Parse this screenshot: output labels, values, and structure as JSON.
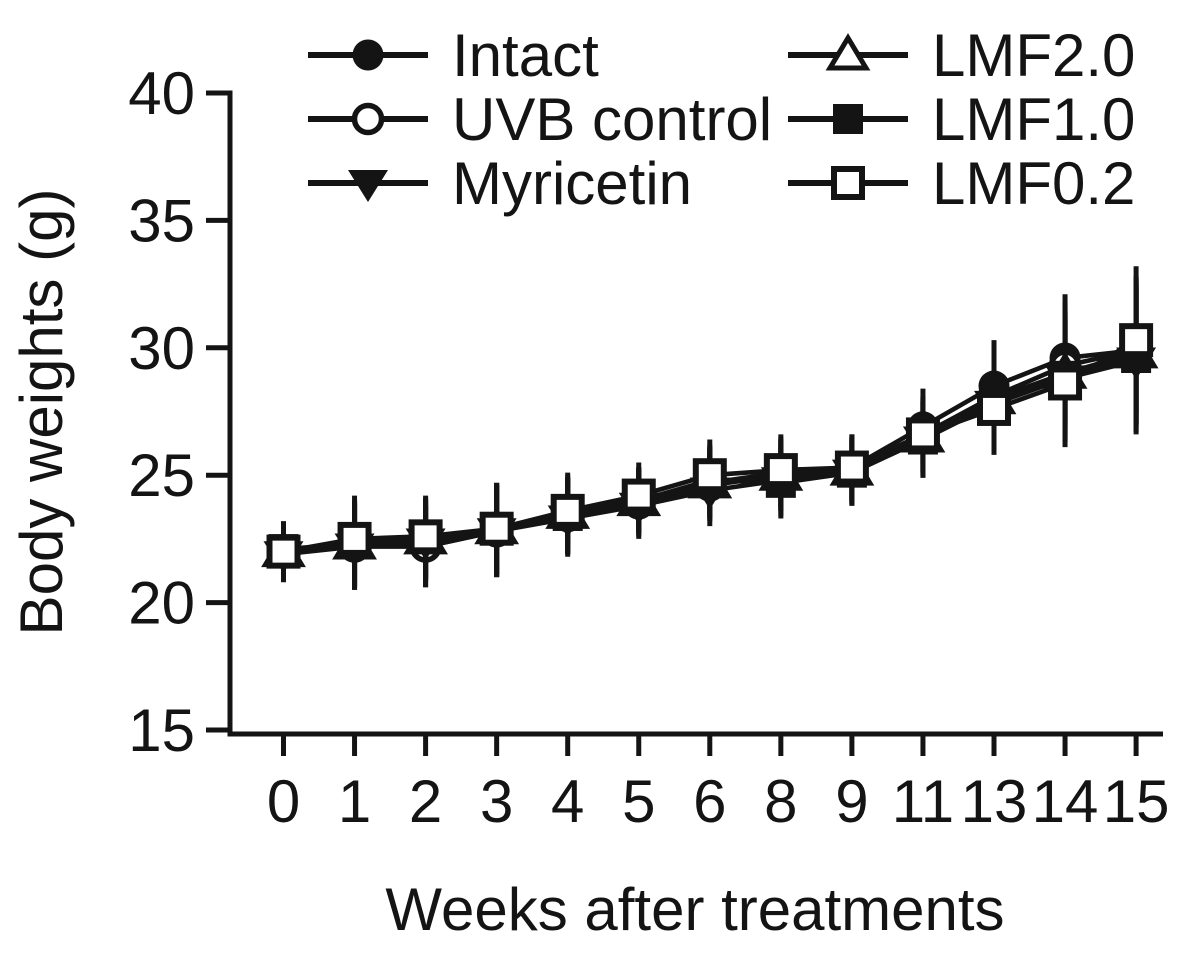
{
  "figure": {
    "background_color": "#ffffff",
    "ink_color": "#141414"
  },
  "chart_data": {
    "type": "line",
    "title": "",
    "xlabel": "Weeks after treatments",
    "ylabel": "Body weights (g)",
    "x_tick_labels": [
      "0",
      "1",
      "2",
      "3",
      "4",
      "5",
      "6",
      "8",
      "9",
      "11",
      "13",
      "14",
      "15"
    ],
    "y_ticks": [
      15,
      20,
      25,
      30,
      35,
      40
    ],
    "ylim": [
      15,
      40
    ],
    "grid": false,
    "legend": {
      "position": "top",
      "columns": 2,
      "entries": [
        "Intact",
        "UVB control",
        "Myricetin",
        "LMF2.0",
        "LMF1.0",
        "LMF0.2"
      ]
    },
    "error_bars": {
      "show": true,
      "caps": false,
      "half_lengths": [
        1.1,
        1.7,
        1.6,
        1.8,
        1.5,
        1.3,
        1.4,
        1.4,
        1.3,
        1.5,
        1.8,
        2.5,
        2.9
      ]
    },
    "series": [
      {
        "name": "Intact",
        "marker": "filled-circle",
        "values": [
          22.0,
          22.3,
          22.2,
          22.8,
          23.4,
          24.0,
          24.7,
          25.1,
          25.3,
          26.9,
          28.5,
          29.6,
          29.9
        ]
      },
      {
        "name": "UVB control",
        "marker": "open-circle",
        "values": [
          22.0,
          22.2,
          22.2,
          22.8,
          23.4,
          23.9,
          24.6,
          25.0,
          25.2,
          26.6,
          28.1,
          29.3,
          29.9
        ]
      },
      {
        "name": "Myricetin",
        "marker": "filled-triangle-down",
        "values": [
          21.9,
          22.2,
          22.4,
          22.8,
          23.3,
          23.8,
          24.4,
          24.8,
          25.1,
          26.4,
          27.8,
          28.8,
          29.5
        ]
      },
      {
        "name": "LMF2.0",
        "marker": "open-triangle-up",
        "values": [
          22.0,
          22.3,
          22.5,
          22.9,
          23.5,
          24.0,
          24.7,
          25.0,
          25.2,
          26.5,
          28.0,
          29.0,
          29.8
        ]
      },
      {
        "name": "LMF1.0",
        "marker": "filled-square",
        "values": [
          22.1,
          22.3,
          22.5,
          22.9,
          23.4,
          24.0,
          24.8,
          24.7,
          25.1,
          26.4,
          27.9,
          28.9,
          29.6
        ]
      },
      {
        "name": "LMF0.2",
        "marker": "open-square",
        "values": [
          22.0,
          22.5,
          22.6,
          22.9,
          23.6,
          24.2,
          25.0,
          25.2,
          25.3,
          26.6,
          27.6,
          28.6,
          30.3
        ]
      }
    ]
  }
}
